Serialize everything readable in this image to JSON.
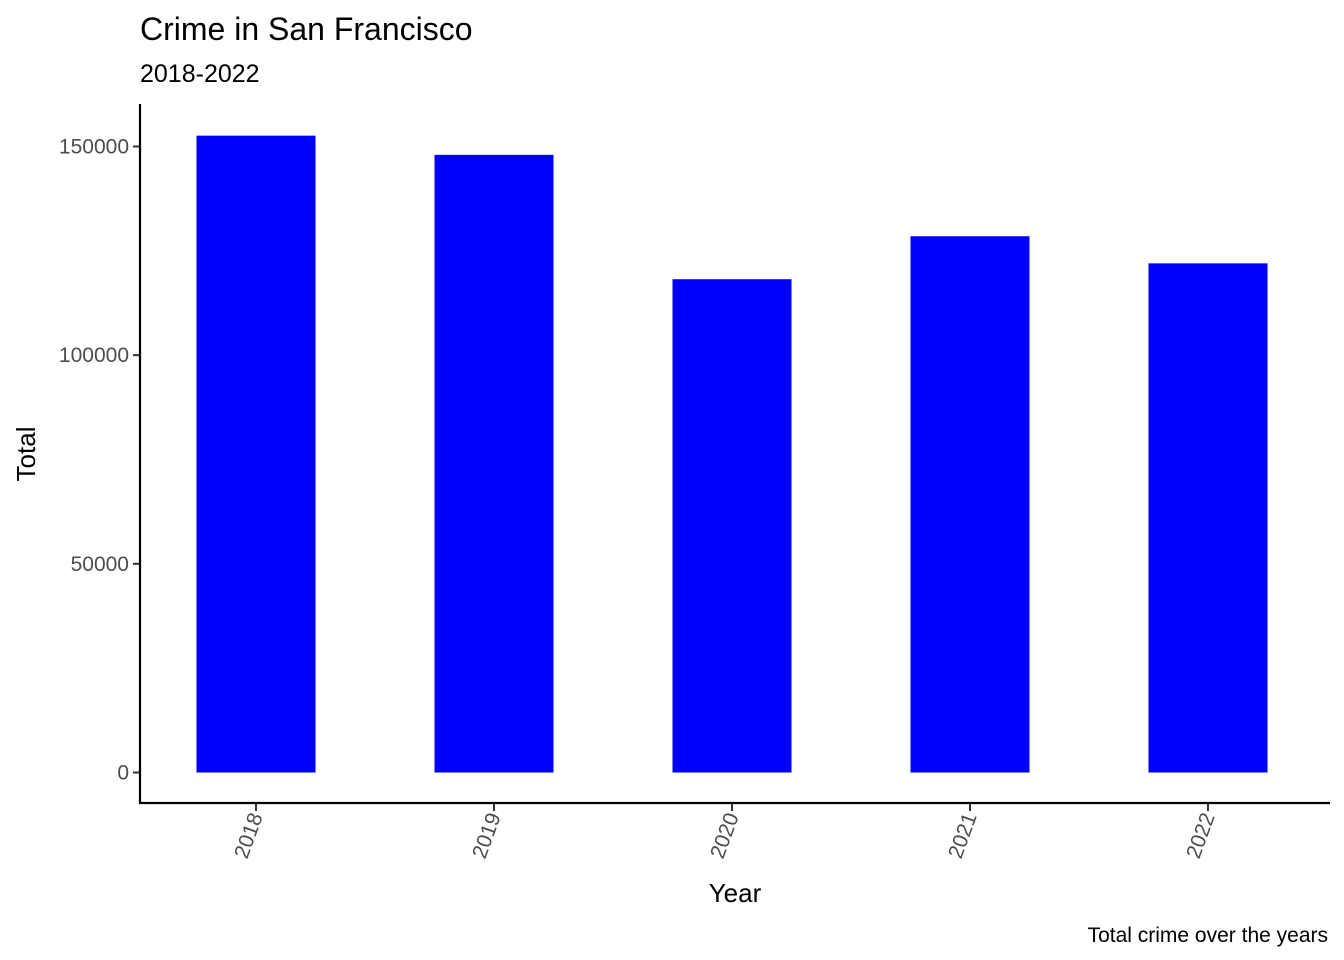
{
  "chart_data": {
    "type": "bar",
    "title": "Crime in San Francisco",
    "subtitle": "2018-2022",
    "xlabel": "Year",
    "ylabel": "Total",
    "caption": "Total crime over the years",
    "categories": [
      "2018",
      "2019",
      "2020",
      "2021",
      "2022"
    ],
    "values": [
      152600,
      148000,
      118200,
      128500,
      122000
    ],
    "ylim": [
      -7500,
      160000
    ],
    "yticks": [
      0,
      50000,
      100000,
      150000
    ],
    "ytick_labels": [
      "0",
      "50000",
      "100000",
      "150000"
    ],
    "bar_color": "#0000ff",
    "grid": false,
    "legend": "none",
    "x_tick_rotation_deg": -70
  }
}
